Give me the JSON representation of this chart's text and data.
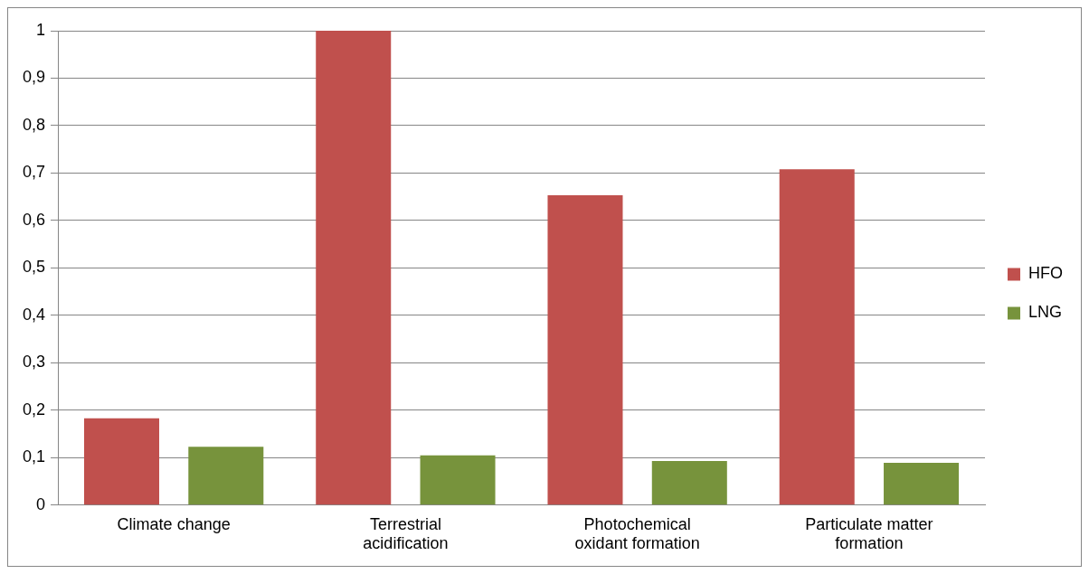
{
  "chart_data": {
    "type": "bar",
    "categories": [
      "Climate change",
      "Terrestrial acidification",
      "Photochemical oxidant formation",
      "Particulate matter formation"
    ],
    "series": [
      {
        "name": "HFO",
        "color": "#c0504d",
        "values": [
          0.183,
          1.0,
          0.653,
          0.708
        ]
      },
      {
        "name": "LNG",
        "color": "#77933c",
        "values": [
          0.123,
          0.105,
          0.093,
          0.089
        ]
      }
    ],
    "ylim": [
      0,
      1
    ],
    "yticks": [
      0,
      {
        "value": 0.1,
        "label": "0,1"
      },
      {
        "value": 0.2,
        "label": "0,2"
      },
      {
        "value": 0.3,
        "label": "0,3"
      },
      {
        "value": 0.4,
        "label": "0,4"
      },
      {
        "value": 0.5,
        "label": "0,5"
      },
      {
        "value": 0.6,
        "label": "0,6"
      },
      {
        "value": 0.7,
        "label": "0,7"
      },
      {
        "value": 0.8,
        "label": "0,8"
      },
      {
        "value": 0.9,
        "label": "0,9"
      },
      1
    ],
    "grid": "y",
    "legend": "right"
  }
}
